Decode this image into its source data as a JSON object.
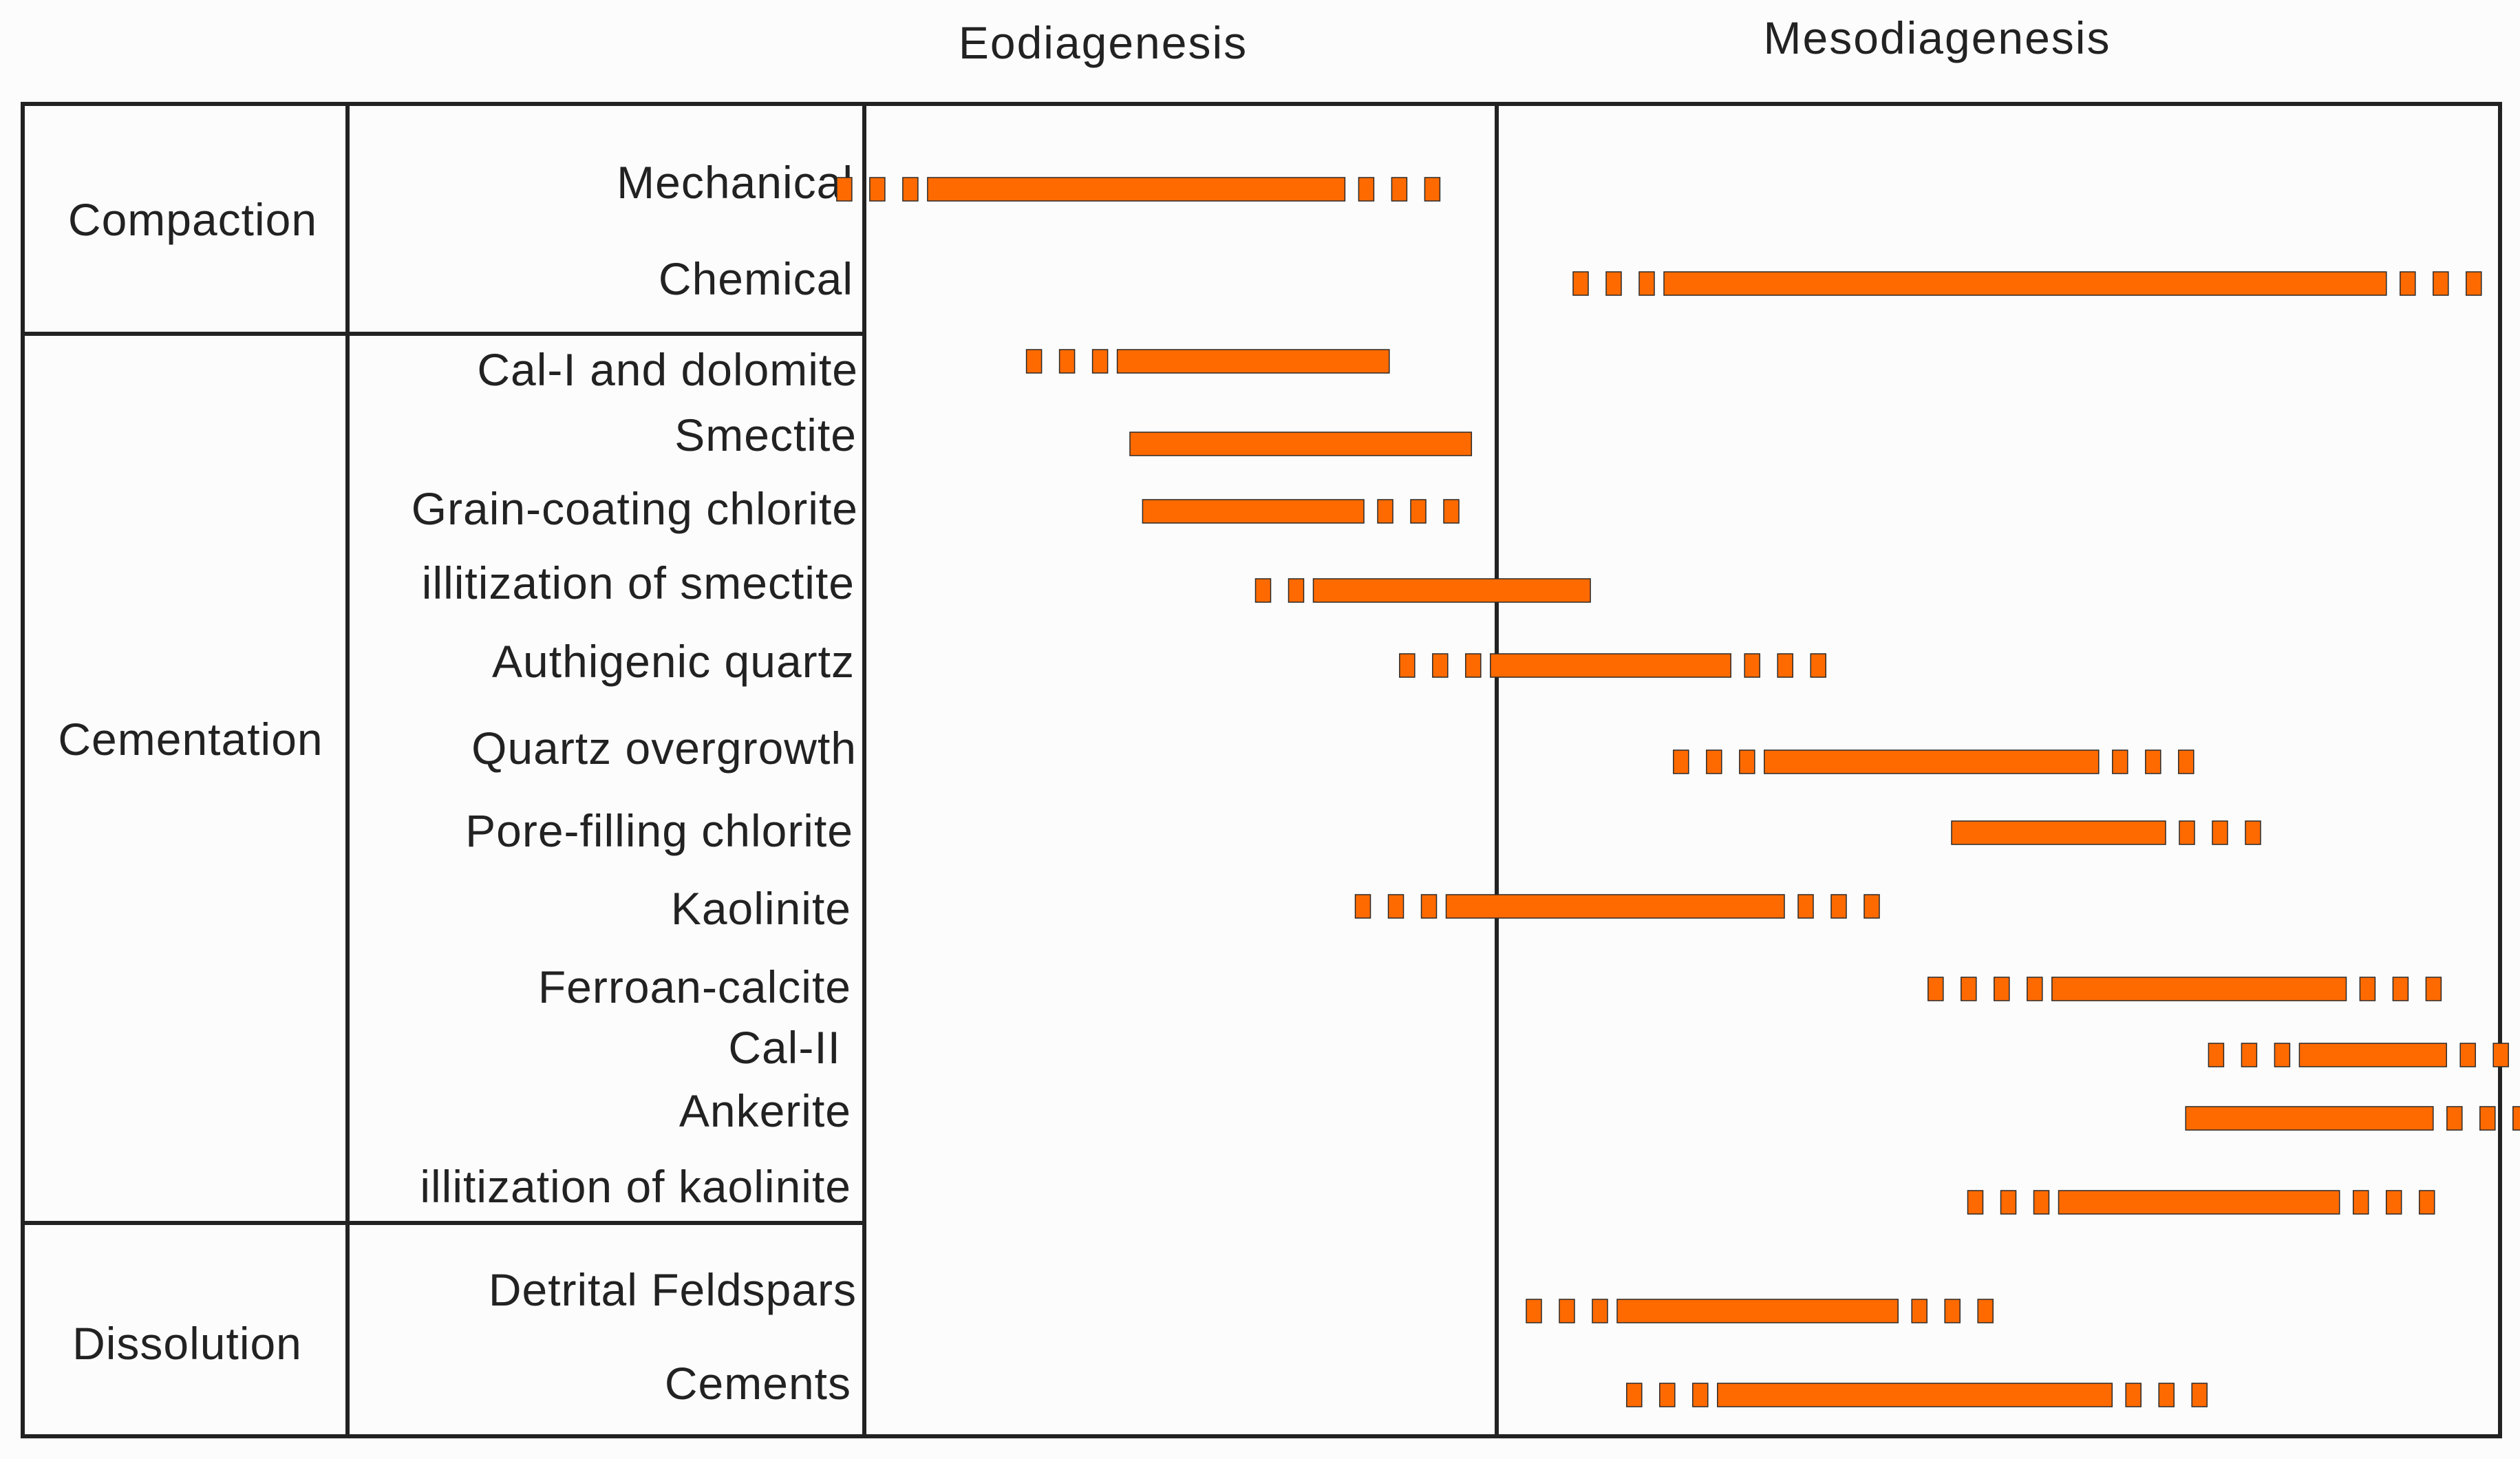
{
  "stages": [
    "Eodiagenesis",
    "Mesodiagenesis"
  ],
  "groups": [
    {
      "name": "Compaction",
      "processes": [
        {
          "name": "Mechanical",
          "pre": 3,
          "start": 0.1,
          "end": 0.76,
          "post": 3
        },
        {
          "name": "Chemical",
          "pre": 3,
          "start": 1.25,
          "end": 2.33,
          "post": 3
        }
      ]
    },
    {
      "name": "Cementation",
      "processes": [
        {
          "name": "Cal-I and dolomite",
          "pre": 3,
          "start": 0.4,
          "end": 0.83,
          "post": 0
        },
        {
          "name": "Smectite",
          "pre": 0,
          "start": 0.42,
          "end": 0.96,
          "post": 0
        },
        {
          "name": "Grain-coating chlorite",
          "pre": 0,
          "start": 0.44,
          "end": 0.79,
          "post": 3
        },
        {
          "name": "illitization of smectite",
          "pre": 2,
          "start": 0.71,
          "end": 1.14,
          "post": 0
        },
        {
          "name": "Authigenic quartz",
          "pre": 3,
          "start": 0.99,
          "end": 1.35,
          "post": 3
        },
        {
          "name": "Quartz overgrowth",
          "pre": 3,
          "start": 1.4,
          "end": 1.9,
          "post": 3
        },
        {
          "name": "Pore-filling chlorite",
          "pre": 0,
          "start": 1.68,
          "end": 2.0,
          "post": 3
        },
        {
          "name": "Kaolinite",
          "pre": 3,
          "start": 0.92,
          "end": 1.43,
          "post": 3
        },
        {
          "name": "Ferroan-calcite",
          "pre": 4,
          "start": 1.83,
          "end": 2.27,
          "post": 3
        },
        {
          "name": "Cal-II",
          "pre": 3,
          "start": 2.2,
          "end": 2.42,
          "post": 3
        },
        {
          "name": "Ankerite",
          "pre": 0,
          "start": 2.03,
          "end": 2.4,
          "post": 3
        },
        {
          "name": "illitization of kaolinite",
          "pre": 3,
          "start": 1.84,
          "end": 2.26,
          "post": 3
        }
      ]
    },
    {
      "name": "Dissolution",
      "processes": [
        {
          "name": "Detrital Feldspars",
          "pre": 3,
          "start": 1.18,
          "end": 1.6,
          "post": 3
        },
        {
          "name": "Cements",
          "pre": 3,
          "start": 1.33,
          "end": 1.92,
          "post": 3
        }
      ]
    }
  ]
}
